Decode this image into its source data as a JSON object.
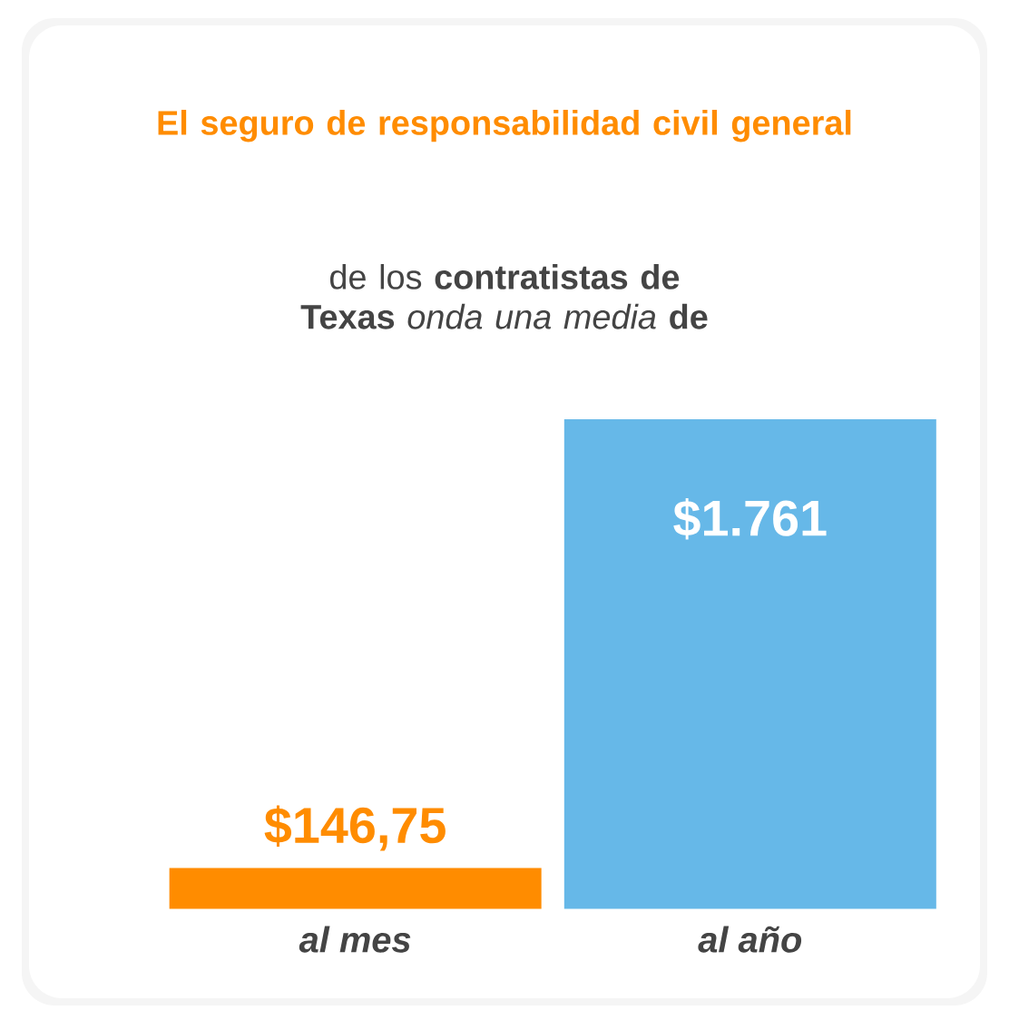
{
  "chart_data": {
    "type": "bar",
    "title": "El seguro de responsabilidad civil general",
    "subtitle": "de los **contratistas de Texas** *onda una media* **de**",
    "categories": [
      "al mes",
      "al año"
    ],
    "values": [
      146.75,
      1761
    ],
    "colors": [
      "#ff8c00",
      "#66b8e8"
    ],
    "value_labels": [
      "$146,75",
      "$1.761"
    ]
  }
}
